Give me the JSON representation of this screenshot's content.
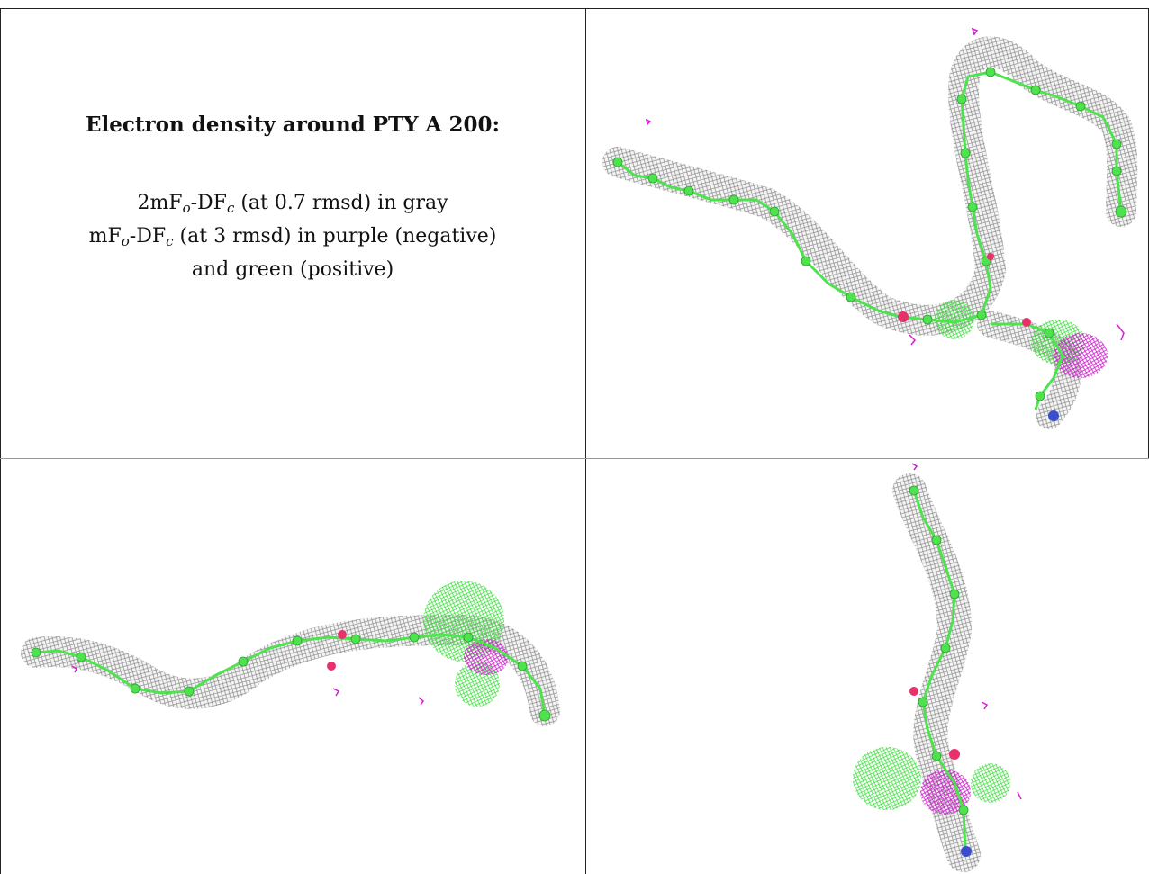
{
  "caption": {
    "title": "Electron density around PTY A 200:",
    "line1": {
      "prefix": "2mF",
      "sub1": "o",
      "mid": "-DF",
      "sub2": "c",
      "suffix": " (at 0.7 rmsd) in gray"
    },
    "line2": {
      "prefix": "mF",
      "sub1": "o",
      "mid": "-DF",
      "sub2": "c",
      "suffix": " (at 3 rmsd) in purple (negative)"
    },
    "line3": "and green (positive)"
  },
  "colors": {
    "mesh_gray": "#8a8a8a",
    "carbon_green": "#4fe24f",
    "oxygen_red": "#e8306a",
    "nitrogen_blue": "#3a4fd0",
    "negative_purple": "#d020d0",
    "positive_green": "#33dd33"
  },
  "panels": [
    {
      "name": "view-top-right"
    },
    {
      "name": "view-bottom-left"
    },
    {
      "name": "view-bottom-right"
    }
  ]
}
